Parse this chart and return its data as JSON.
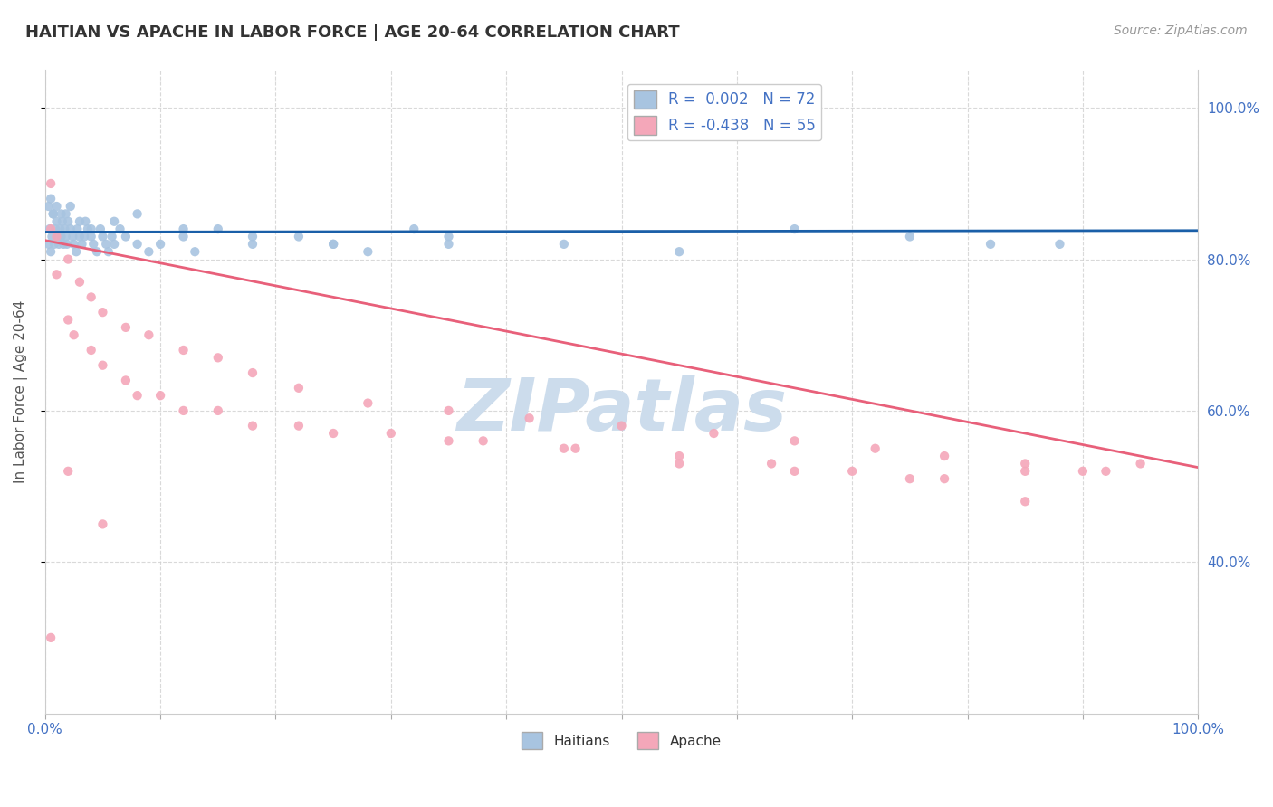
{
  "title": "HAITIAN VS APACHE IN LABOR FORCE | AGE 20-64 CORRELATION CHART",
  "source_text": "Source: ZipAtlas.com",
  "ylabel": "In Labor Force | Age 20-64",
  "xlim": [
    0.0,
    1.0
  ],
  "ylim": [
    0.2,
    1.05
  ],
  "right_yticks": [
    0.4,
    0.6,
    0.8,
    1.0
  ],
  "right_yticklabels": [
    "40.0%",
    "60.0%",
    "80.0%",
    "100.0%"
  ],
  "legend_R1": "R =  0.002",
  "legend_N1": "N = 72",
  "legend_R2": "R = -0.438",
  "legend_N2": "N = 55",
  "haitian_color": "#a8c4e0",
  "apache_color": "#f4a7b9",
  "haitian_line_color": "#1a5fa8",
  "apache_line_color": "#e8607a",
  "grid_color": "#d0d0d0",
  "background_color": "#ffffff",
  "title_color": "#333333",
  "axis_label_color": "#555555",
  "tick_color": "#4472c4",
  "watermark_color": "#ccdcec",
  "haitian_x": [
    0.003,
    0.004,
    0.005,
    0.006,
    0.007,
    0.008,
    0.009,
    0.01,
    0.011,
    0.012,
    0.013,
    0.014,
    0.015,
    0.016,
    0.017,
    0.018,
    0.019,
    0.02,
    0.022,
    0.024,
    0.025,
    0.027,
    0.028,
    0.03,
    0.032,
    0.034,
    0.035,
    0.037,
    0.04,
    0.042,
    0.045,
    0.048,
    0.05,
    0.053,
    0.055,
    0.058,
    0.06,
    0.065,
    0.07,
    0.08,
    0.09,
    0.1,
    0.12,
    0.13,
    0.15,
    0.18,
    0.22,
    0.25,
    0.28,
    0.32,
    0.35,
    0.45,
    0.55,
    0.65,
    0.75,
    0.82,
    0.88,
    0.003,
    0.005,
    0.007,
    0.01,
    0.014,
    0.018,
    0.022,
    0.03,
    0.04,
    0.06,
    0.08,
    0.12,
    0.18,
    0.25,
    0.35
  ],
  "haitian_y": [
    0.82,
    0.84,
    0.81,
    0.83,
    0.86,
    0.82,
    0.84,
    0.85,
    0.83,
    0.82,
    0.84,
    0.83,
    0.85,
    0.82,
    0.84,
    0.83,
    0.82,
    0.85,
    0.84,
    0.83,
    0.82,
    0.81,
    0.84,
    0.83,
    0.82,
    0.83,
    0.85,
    0.84,
    0.83,
    0.82,
    0.81,
    0.84,
    0.83,
    0.82,
    0.81,
    0.83,
    0.82,
    0.84,
    0.83,
    0.82,
    0.81,
    0.82,
    0.83,
    0.81,
    0.84,
    0.82,
    0.83,
    0.82,
    0.81,
    0.84,
    0.83,
    0.82,
    0.81,
    0.84,
    0.83,
    0.82,
    0.82,
    0.87,
    0.88,
    0.86,
    0.87,
    0.86,
    0.86,
    0.87,
    0.85,
    0.84,
    0.85,
    0.86,
    0.84,
    0.83,
    0.82,
    0.82
  ],
  "apache_x": [
    0.005,
    0.01,
    0.02,
    0.03,
    0.04,
    0.05,
    0.07,
    0.09,
    0.12,
    0.15,
    0.18,
    0.22,
    0.28,
    0.35,
    0.42,
    0.5,
    0.58,
    0.65,
    0.72,
    0.78,
    0.85,
    0.9,
    0.95,
    0.005,
    0.01,
    0.02,
    0.04,
    0.07,
    0.1,
    0.15,
    0.22,
    0.3,
    0.38,
    0.46,
    0.55,
    0.63,
    0.7,
    0.78,
    0.85,
    0.025,
    0.05,
    0.08,
    0.12,
    0.18,
    0.25,
    0.35,
    0.45,
    0.55,
    0.65,
    0.75,
    0.85,
    0.92,
    0.005,
    0.02,
    0.05
  ],
  "apache_y": [
    0.84,
    0.83,
    0.8,
    0.77,
    0.75,
    0.73,
    0.71,
    0.7,
    0.68,
    0.67,
    0.65,
    0.63,
    0.61,
    0.6,
    0.59,
    0.58,
    0.57,
    0.56,
    0.55,
    0.54,
    0.53,
    0.52,
    0.53,
    0.9,
    0.78,
    0.72,
    0.68,
    0.64,
    0.62,
    0.6,
    0.58,
    0.57,
    0.56,
    0.55,
    0.54,
    0.53,
    0.52,
    0.51,
    0.52,
    0.7,
    0.66,
    0.62,
    0.6,
    0.58,
    0.57,
    0.56,
    0.55,
    0.53,
    0.52,
    0.51,
    0.48,
    0.52,
    0.3,
    0.52,
    0.45
  ],
  "haitian_trend_x": [
    0.0,
    1.0
  ],
  "haitian_trend_y": [
    0.836,
    0.838
  ],
  "apache_trend_x": [
    0.0,
    1.0
  ],
  "apache_trend_y": [
    0.825,
    0.525
  ]
}
